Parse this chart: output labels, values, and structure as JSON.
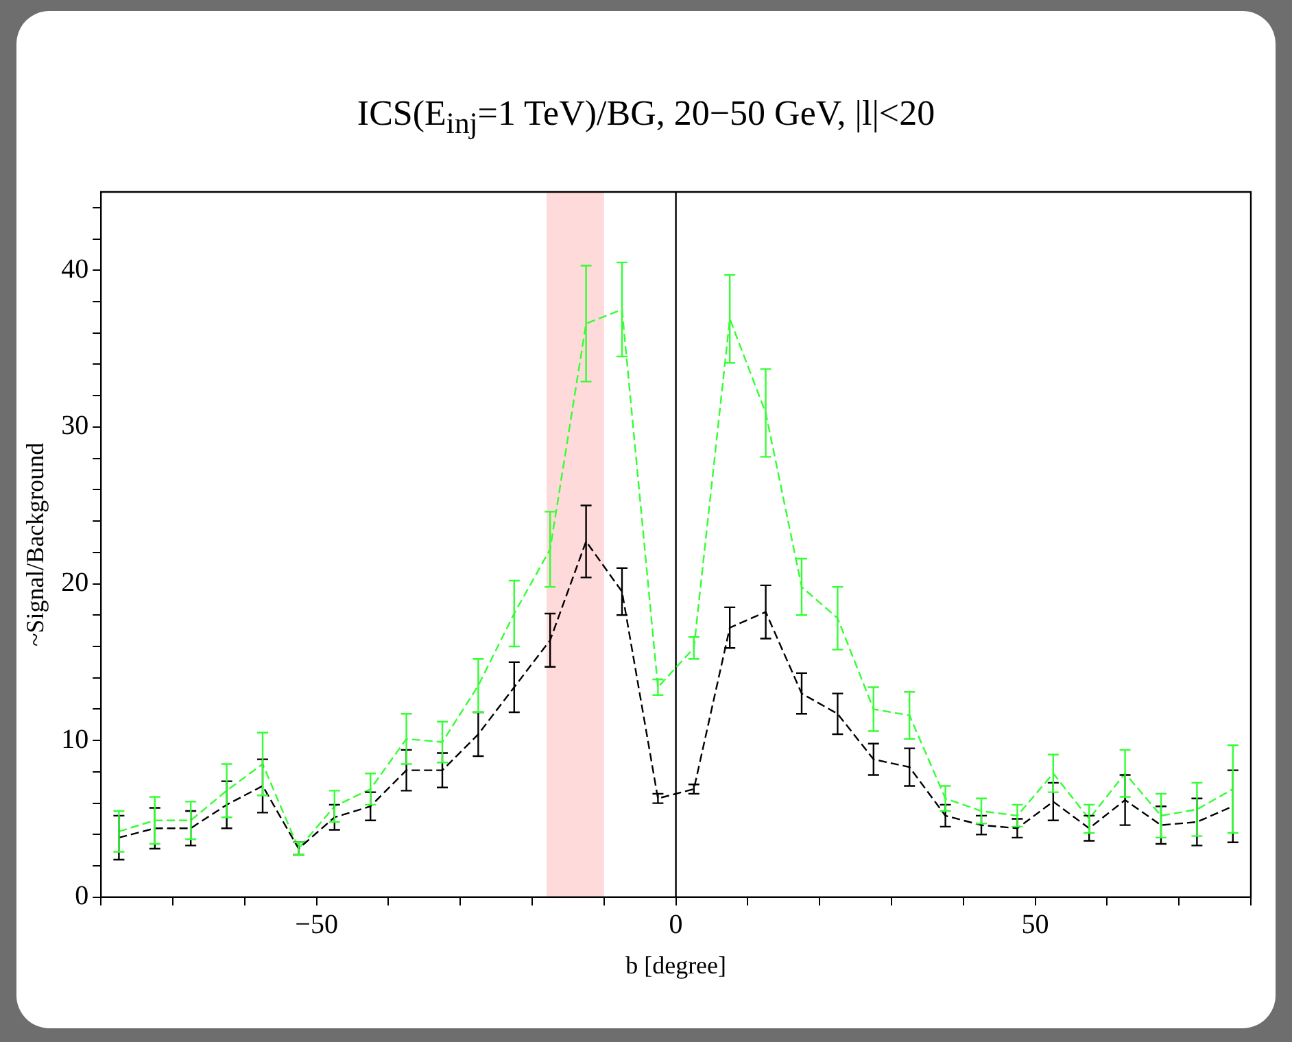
{
  "chart_data": {
    "type": "line",
    "title": "ICS(E$_{inj}$=1 TeV)/BG, 20−50 GeV, |l|<20",
    "xlabel": "b [degree]",
    "ylabel": "~Signal/Background",
    "x": [
      -77.5,
      -72.5,
      -67.5,
      -62.5,
      -57.5,
      -52.5,
      -47.5,
      -42.5,
      -37.5,
      -32.5,
      -27.5,
      -22.5,
      -17.5,
      -12.5,
      -7.5,
      -2.5,
      2.5,
      7.5,
      12.5,
      17.5,
      22.5,
      27.5,
      32.5,
      37.5,
      42.5,
      47.5,
      52.5,
      57.5,
      62.5,
      67.5,
      72.5,
      77.5
    ],
    "xlim": [
      -80,
      80
    ],
    "ylim": [
      0,
      45
    ],
    "xticks": [
      {
        "value": -80,
        "label": null
      },
      {
        "value": -70,
        "label": null
      },
      {
        "value": -60,
        "label": null
      },
      {
        "value": -50,
        "label": "−50"
      },
      {
        "value": -40,
        "label": null
      },
      {
        "value": -30,
        "label": null
      },
      {
        "value": -20,
        "label": null
      },
      {
        "value": -10,
        "label": null
      },
      0,
      {
        "value": 10,
        "label": null
      },
      {
        "value": 20,
        "label": null
      },
      {
        "value": 30,
        "label": null
      },
      {
        "value": 40,
        "label": null
      },
      50,
      {
        "value": 60,
        "label": null
      },
      {
        "value": 70,
        "label": null
      },
      {
        "value": 80,
        "label": null
      }
    ],
    "yticks": [
      0,
      {
        "value": 2,
        "label": null
      },
      {
        "value": 4,
        "label": null
      },
      {
        "value": 6,
        "label": null
      },
      {
        "value": 8,
        "label": null
      },
      10,
      {
        "value": 12,
        "label": null
      },
      {
        "value": 14,
        "label": null
      },
      {
        "value": 16,
        "label": null
      },
      {
        "value": 18,
        "label": null
      },
      20,
      {
        "value": 22,
        "label": null
      },
      {
        "value": 24,
        "label": null
      },
      {
        "value": 26,
        "label": null
      },
      {
        "value": 28,
        "label": null
      },
      30,
      {
        "value": 32,
        "label": null
      },
      {
        "value": 34,
        "label": null
      },
      {
        "value": 36,
        "label": null
      },
      {
        "value": 38,
        "label": null
      },
      40,
      {
        "value": 42,
        "label": null
      },
      {
        "value": 44,
        "label": null
      }
    ],
    "line_style": "dashed",
    "marker": "none",
    "series": [
      {
        "color": "#000000",
        "values": [
          3.8,
          4.4,
          4.4,
          5.9,
          7.1,
          3.1,
          5.1,
          5.8,
          8.1,
          8.1,
          10.4,
          13.4,
          16.4,
          22.7,
          19.5,
          6.3,
          6.9,
          17.2,
          18.2,
          13.0,
          11.7,
          8.8,
          8.3,
          5.2,
          4.6,
          4.4,
          6.1,
          4.4,
          6.2,
          4.6,
          4.8,
          5.8
        ],
        "errors": [
          1.4,
          1.3,
          1.1,
          1.5,
          1.7,
          0.4,
          0.8,
          0.9,
          1.3,
          1.1,
          1.4,
          1.6,
          1.7,
          2.3,
          1.5,
          0.3,
          0.3,
          1.3,
          1.7,
          1.3,
          1.3,
          1.0,
          1.2,
          0.7,
          0.6,
          0.6,
          1.2,
          0.8,
          1.6,
          1.2,
          1.5,
          2.3
        ]
      },
      {
        "color": "#33ff33",
        "values": [
          4.2,
          4.9,
          4.9,
          6.8,
          8.5,
          3.1,
          5.8,
          6.9,
          10.1,
          9.9,
          13.5,
          18.1,
          22.2,
          36.6,
          37.5,
          13.4,
          15.9,
          36.9,
          30.9,
          19.8,
          17.8,
          12.0,
          11.6,
          6.3,
          5.5,
          5.2,
          7.9,
          5.0,
          7.9,
          5.2,
          5.6,
          6.9
        ],
        "errors": [
          1.3,
          1.5,
          1.2,
          1.7,
          2.0,
          0.4,
          1.0,
          1.0,
          1.6,
          1.3,
          1.7,
          2.1,
          2.4,
          3.7,
          3.0,
          0.5,
          0.7,
          2.8,
          2.8,
          1.8,
          2.0,
          1.4,
          1.5,
          0.8,
          0.8,
          0.7,
          1.2,
          0.9,
          1.5,
          1.4,
          1.7,
          2.8
        ]
      }
    ],
    "bands": [
      {
        "axis": "x",
        "from": -18,
        "to": -10,
        "color": "#ffdada"
      }
    ],
    "ref_lines": [
      {
        "axis": "x",
        "value": 0,
        "color": "#000000",
        "line_style": "solid"
      }
    ]
  }
}
